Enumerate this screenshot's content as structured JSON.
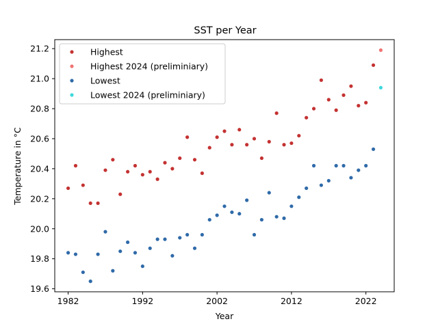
{
  "chart_data": {
    "type": "scatter",
    "title": "SST per Year",
    "xlabel": "Year",
    "ylabel": "Temperature in °C",
    "xlim": [
      1980.2,
      2025.8
    ],
    "ylim": [
      19.58,
      21.26
    ],
    "xticks": [
      1982,
      1992,
      2002,
      2012,
      2022
    ],
    "yticks": [
      19.6,
      19.8,
      20.0,
      20.2,
      20.4,
      20.6,
      20.8,
      21.0,
      21.2
    ],
    "ytick_decimals": 1,
    "grid": false,
    "legend_position": "top-left",
    "series": [
      {
        "name": "Highest",
        "color": "#c43232",
        "x": [
          1982,
          1983,
          1984,
          1985,
          1986,
          1987,
          1988,
          1989,
          1990,
          1991,
          1992,
          1993,
          1994,
          1995,
          1996,
          1997,
          1998,
          1999,
          2000,
          2001,
          2002,
          2003,
          2004,
          2005,
          2006,
          2007,
          2008,
          2009,
          2010,
          2011,
          2012,
          2013,
          2014,
          2015,
          2016,
          2017,
          2018,
          2019,
          2020,
          2021,
          2022,
          2023
        ],
        "y": [
          20.27,
          20.42,
          20.29,
          20.17,
          20.17,
          20.39,
          20.46,
          20.23,
          20.38,
          20.42,
          20.36,
          20.38,
          20.33,
          20.44,
          20.4,
          20.47,
          20.61,
          20.46,
          20.37,
          20.54,
          20.61,
          20.65,
          20.56,
          20.66,
          20.56,
          20.6,
          20.47,
          20.58,
          20.77,
          20.56,
          20.57,
          20.62,
          20.74,
          20.8,
          20.99,
          20.86,
          20.79,
          20.89,
          20.95,
          20.82,
          20.84,
          21.09
        ]
      },
      {
        "name": "Highest 2024 (preliminiary)",
        "color": "#f07474",
        "x": [
          2024
        ],
        "y": [
          21.19
        ]
      },
      {
        "name": "Lowest",
        "color": "#2f6aa8",
        "x": [
          1982,
          1983,
          1984,
          1985,
          1986,
          1987,
          1988,
          1989,
          1990,
          1991,
          1992,
          1993,
          1994,
          1995,
          1996,
          1997,
          1998,
          1999,
          2000,
          2001,
          2002,
          2003,
          2004,
          2005,
          2006,
          2007,
          2008,
          2009,
          2010,
          2011,
          2012,
          2013,
          2014,
          2015,
          2016,
          2017,
          2018,
          2019,
          2020,
          2021,
          2022,
          2023
        ],
        "y": [
          19.84,
          19.83,
          19.71,
          19.65,
          19.83,
          19.98,
          19.72,
          19.85,
          19.91,
          19.84,
          19.75,
          19.87,
          19.93,
          19.93,
          19.82,
          19.94,
          19.96,
          19.87,
          19.96,
          20.06,
          20.09,
          20.15,
          20.11,
          20.1,
          20.19,
          19.96,
          20.06,
          20.24,
          20.08,
          20.07,
          20.15,
          20.21,
          20.27,
          20.42,
          20.29,
          20.32,
          20.42,
          20.42,
          20.34,
          20.39,
          20.42,
          20.53
        ]
      },
      {
        "name": "Lowest 2024 (preliminiary)",
        "color": "#3ed8dc",
        "x": [
          2024
        ],
        "y": [
          20.94
        ]
      }
    ]
  }
}
